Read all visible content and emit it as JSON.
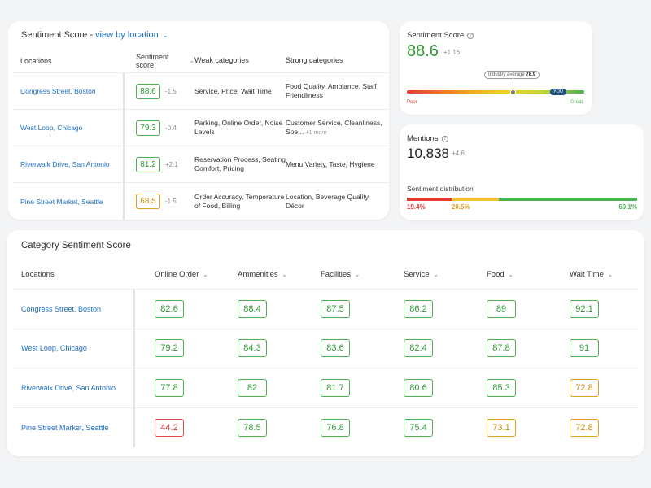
{
  "location_card": {
    "title": "Sentiment Score -",
    "link": "view by location",
    "headers": {
      "locations": "Locations",
      "sentiment_score": "Sentiment score",
      "weak": "Weak categories",
      "strong": "Strong categories"
    },
    "rows": [
      {
        "location": "Congress Street, Boston",
        "score": "88.6",
        "delta": "-1.5",
        "weak": "Service, Price, Wait Time",
        "strong": "Food Quality, Ambiance, Staff Friendliness",
        "more": "",
        "tone": "green"
      },
      {
        "location": "West Loop, Chicago",
        "score": "79.3",
        "delta": "-0.4",
        "weak": "Parking, Online Order, Noise Levels",
        "strong": "Customer Service, Cleanliness, Spe...",
        "more": "+1 more",
        "tone": "green"
      },
      {
        "location": "Riverwalk Drive, San Antonio",
        "score": "81.2",
        "delta": "+2.1",
        "weak": "Reservation Process, Seating Comfort, Pricing",
        "strong": "Menu Variety, Taste, Hygiene",
        "more": "",
        "tone": "green"
      },
      {
        "location": "Pine Street Market, Seattle",
        "score": "68.5",
        "delta": "-1.5",
        "weak": "Order Accuracy, Temperature of Food, Billing",
        "strong": "Location, Beverage Quality, Décor",
        "more": "",
        "tone": "amber"
      }
    ]
  },
  "score_card": {
    "title": "Sentiment Score",
    "value": "88.6",
    "delta": "+1.16",
    "industry_label": "Industry average",
    "industry_value": "78.9",
    "you_label": "YOU",
    "poor_label": "Poor",
    "great_label": "Great"
  },
  "mentions_card": {
    "title": "Mentions",
    "value": "10,838",
    "delta": "+4.6",
    "distribution_title": "Sentiment distribution",
    "distribution": [
      {
        "label": "19.4%",
        "value": 19.4,
        "color": "#e53935"
      },
      {
        "label": "20.5%",
        "value": 20.5,
        "color": "#f2c12e"
      },
      {
        "label": "60.1%",
        "value": 60.1,
        "color": "#4caf50"
      }
    ]
  },
  "category_card": {
    "title": "Category Sentiment Score",
    "headers": [
      "Locations",
      "Online Order",
      "Ammenities",
      "Facilities",
      "Service",
      "Food",
      "Wait Time"
    ],
    "rows": [
      {
        "location": "Congress Street, Boston",
        "scores": [
          "82.6",
          "88.4",
          "87.5",
          "86.2",
          "89",
          "92.1"
        ],
        "tones": [
          "green",
          "green",
          "green",
          "green",
          "green",
          "green"
        ]
      },
      {
        "location": "West Loop, Chicago",
        "scores": [
          "79.2",
          "84.3",
          "83.6",
          "82.4",
          "87.8",
          "91"
        ],
        "tones": [
          "green",
          "green",
          "green",
          "green",
          "green",
          "green"
        ]
      },
      {
        "location": "Riverwalk Drive, San Antonio",
        "scores": [
          "77.8",
          "82",
          "81.7",
          "80.6",
          "85.3",
          "72.8"
        ],
        "tones": [
          "green",
          "green",
          "green",
          "green",
          "green",
          "amber"
        ]
      },
      {
        "location": "Pine Street Market, Seattle",
        "scores": [
          "44.2",
          "78.5",
          "76.8",
          "75.4",
          "73.1",
          "72.8"
        ],
        "tones": [
          "red",
          "green",
          "green",
          "green",
          "amber",
          "amber"
        ]
      }
    ]
  }
}
